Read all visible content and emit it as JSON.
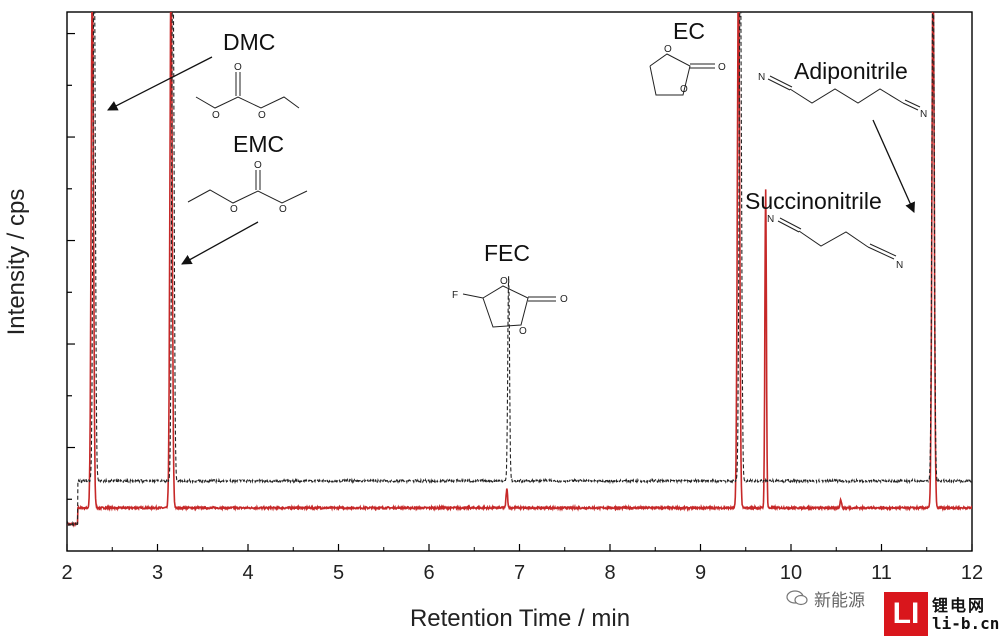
{
  "chart_data": {
    "type": "line",
    "xlabel": "Retention Time / min",
    "ylabel": "Intensity / cps",
    "xlim": [
      2,
      12
    ],
    "ylim": [
      0,
      100
    ],
    "x_ticks": [
      "2",
      "3",
      "4",
      "5",
      "6",
      "7",
      "8",
      "9",
      "10",
      "11",
      "12"
    ],
    "y_tick_labels_shown": false,
    "grid": false,
    "legend": "none",
    "series": [
      {
        "style": "solid",
        "color": "#c62828",
        "baseline": 8,
        "peaks": [
          {
            "x": 2.28,
            "height": 100
          },
          {
            "x": 3.15,
            "height": 100
          },
          {
            "x": 6.86,
            "height": 3.5
          },
          {
            "x": 9.42,
            "height": 100
          },
          {
            "x": 9.72,
            "height": 59
          },
          {
            "x": 10.55,
            "height": 1.5
          },
          {
            "x": 11.57,
            "height": 100
          }
        ]
      },
      {
        "style": "dashed",
        "color": "#222222",
        "baseline": 13,
        "peaks": [
          {
            "x": 2.3,
            "height": 100
          },
          {
            "x": 3.17,
            "height": 100
          },
          {
            "x": 6.88,
            "height": 38
          },
          {
            "x": 9.44,
            "height": 100
          },
          {
            "x": 11.57,
            "height": 100
          }
        ]
      }
    ],
    "annotations": [
      {
        "label": "DMC",
        "points_to_x": 2.3
      },
      {
        "label": "EMC",
        "points_to_x": 3.15
      },
      {
        "label": "FEC",
        "points_to_x": 6.87
      },
      {
        "label": "EC",
        "points_to_x": 9.42
      },
      {
        "label": "Succinonitrile",
        "points_to_x": 9.72
      },
      {
        "label": "Adiponitrile",
        "points_to_x": 11.57
      }
    ],
    "structure_atom_labels": {
      "oxygen": "O",
      "fluorine": "F",
      "nitrogen": "N"
    }
  },
  "watermark": {
    "text": "新能源",
    "brand_mark": "LI",
    "brand_name": "锂电网",
    "brand_url": "li-b.cn",
    "brand_color": "#d9161c"
  }
}
